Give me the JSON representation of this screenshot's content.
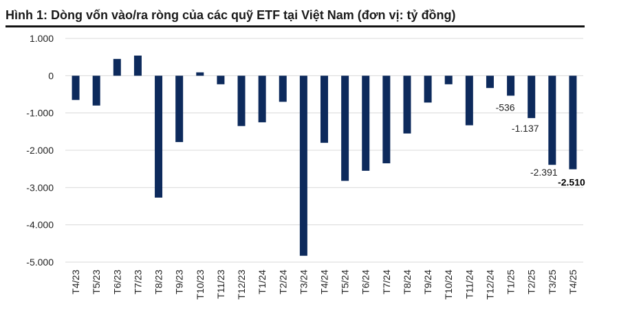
{
  "title": "Hình 1: Dòng vốn vào/ra ròng của các quỹ ETF tại Việt Nam (đơn vị: tỷ đồng)",
  "colors": {
    "bar": "#0d2a5c",
    "grid": "#d9d9d9",
    "text": "#222222"
  },
  "chart_data": {
    "type": "bar",
    "title": "Hình 1: Dòng vốn vào/ra ròng của các quỹ ETF tại Việt Nam (đơn vị: tỷ đồng)",
    "xlabel": "",
    "ylabel": "",
    "ylim": [
      -5000,
      1000
    ],
    "yticks": [
      1000,
      0,
      -1000,
      -2000,
      -3000,
      -4000,
      -5000
    ],
    "ytick_labels": [
      "1.000",
      "0",
      "-1.000",
      "-2.000",
      "-3.000",
      "-4.000",
      "-5.000"
    ],
    "grid": true,
    "categories": [
      "T4/23",
      "T5/23",
      "T6/23",
      "T7/23",
      "T8/23",
      "T9/23",
      "T10/23",
      "T11/23",
      "T12/23",
      "T1/24",
      "T2/24",
      "T3/24",
      "T4/24",
      "T5/24",
      "T6/24",
      "T7/24",
      "T8/24",
      "T9/24",
      "T10/24",
      "T11/24",
      "T12/24",
      "T1/25",
      "T2/25",
      "T3/25",
      "T4/25"
    ],
    "values": [
      -650,
      -800,
      450,
      540,
      -3270,
      -1780,
      90,
      -230,
      -1350,
      -1250,
      -700,
      -4830,
      -1800,
      -2820,
      -2550,
      -2350,
      -1550,
      -720,
      -230,
      -1330,
      -330,
      -536,
      -1137,
      -2391,
      -2510
    ],
    "data_labels": [
      {
        "category": "T1/25",
        "text": "-536",
        "bold": false
      },
      {
        "category": "T2/25",
        "text": "-1.137",
        "bold": false
      },
      {
        "category": "T3/25",
        "text": "-2.391",
        "bold": false
      },
      {
        "category": "T4/25",
        "text": "-2.510",
        "bold": true
      }
    ]
  }
}
